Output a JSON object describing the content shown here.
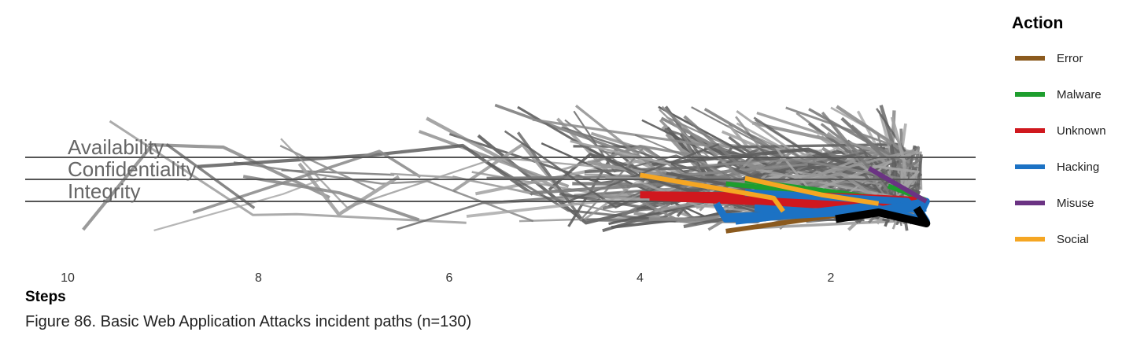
{
  "caption": "Figure 86. Basic Web Application Attacks incident paths (n=130)",
  "chart_data": {
    "type": "line",
    "xlabel": "Steps",
    "x_ticks": [
      10,
      8,
      6,
      4,
      2
    ],
    "xlim": [
      10.5,
      0.5
    ],
    "categories": [
      "Availability",
      "Confidentiality",
      "Integrity"
    ],
    "legend": {
      "title": "Action",
      "placement": "right",
      "entries": [
        {
          "name": "Error",
          "color": "#8B5A1E"
        },
        {
          "name": "Malware",
          "color": "#1E9E2E"
        },
        {
          "name": "Unknown",
          "color": "#D0181E"
        },
        {
          "name": "Hacking",
          "color": "#1C72C4"
        },
        {
          "name": "Misuse",
          "color": "#6B3383"
        },
        {
          "name": "Social",
          "color": "#F5A623"
        }
      ]
    },
    "colors": {
      "path_gray": "#777777",
      "highlight": "#000000",
      "baseline": "#555555"
    },
    "highlight_path": [
      [
        1.95,
        2.8
      ],
      [
        1.5,
        2.5
      ],
      [
        1.0,
        3.0
      ],
      [
        1.1,
        2.3
      ]
    ],
    "series": [
      {
        "action": "Error",
        "points": [
          [
            3.1,
            3.35
          ],
          [
            1.9,
            2.6
          ]
        ]
      },
      {
        "action": "Malware",
        "points": [
          [
            3.1,
            1.2
          ],
          [
            1.2,
            2.0
          ]
        ]
      },
      {
        "action": "Malware",
        "points": [
          [
            2.8,
            1.4
          ],
          [
            1.5,
            2.1
          ]
        ]
      },
      {
        "action": "Malware",
        "points": [
          [
            2.9,
            1.05
          ],
          [
            1.3,
            1.95
          ]
        ]
      },
      {
        "action": "Malware",
        "points": [
          [
            1.4,
            1.3
          ],
          [
            1.0,
            1.95
          ]
        ]
      },
      {
        "action": "Unknown",
        "points": [
          [
            4.0,
            1.7
          ],
          [
            2.8,
            1.75
          ],
          [
            1.3,
            1.9
          ]
        ]
      },
      {
        "action": "Unknown",
        "points": [
          [
            3.9,
            1.8
          ],
          [
            2.6,
            2.05
          ],
          [
            1.0,
            2.2
          ]
        ]
      },
      {
        "action": "Unknown",
        "points": [
          [
            3.6,
            1.75
          ],
          [
            2.2,
            2.15
          ],
          [
            1.1,
            2.05
          ]
        ]
      },
      {
        "action": "Unknown",
        "points": [
          [
            3.0,
            1.65
          ],
          [
            1.8,
            1.8
          ],
          [
            1.1,
            1.95
          ]
        ]
      },
      {
        "action": "Hacking",
        "points": [
          [
            3.2,
            2.1
          ],
          [
            3.1,
            2.8
          ],
          [
            1.0,
            2.3
          ]
        ]
      },
      {
        "action": "Hacking",
        "points": [
          [
            2.9,
            1.6
          ],
          [
            1.2,
            2.0
          ],
          [
            1.0,
            2.9
          ],
          [
            1.1,
            2.2
          ]
        ]
      },
      {
        "action": "Hacking",
        "points": [
          [
            3.1,
            2.7
          ],
          [
            1.5,
            2.4
          ],
          [
            1.0,
            2.0
          ],
          [
            1.1,
            2.9
          ]
        ]
      },
      {
        "action": "Hacking",
        "points": [
          [
            2.8,
            2.3
          ],
          [
            1.7,
            2.6
          ],
          [
            1.05,
            2.1
          ]
        ]
      },
      {
        "action": "Hacking",
        "points": [
          [
            3.0,
            2.9
          ],
          [
            1.6,
            2.2
          ],
          [
            1.0,
            2.9
          ]
        ]
      },
      {
        "action": "Misuse",
        "points": [
          [
            1.6,
            0.5
          ],
          [
            1.0,
            2.0
          ]
        ]
      },
      {
        "action": "Social",
        "points": [
          [
            4.0,
            0.8
          ],
          [
            2.6,
            1.85
          ],
          [
            2.5,
            2.45
          ]
        ]
      },
      {
        "action": "Social",
        "points": [
          [
            2.9,
            0.95
          ],
          [
            2.1,
            1.7
          ],
          [
            1.5,
            2.1
          ]
        ]
      }
    ]
  }
}
